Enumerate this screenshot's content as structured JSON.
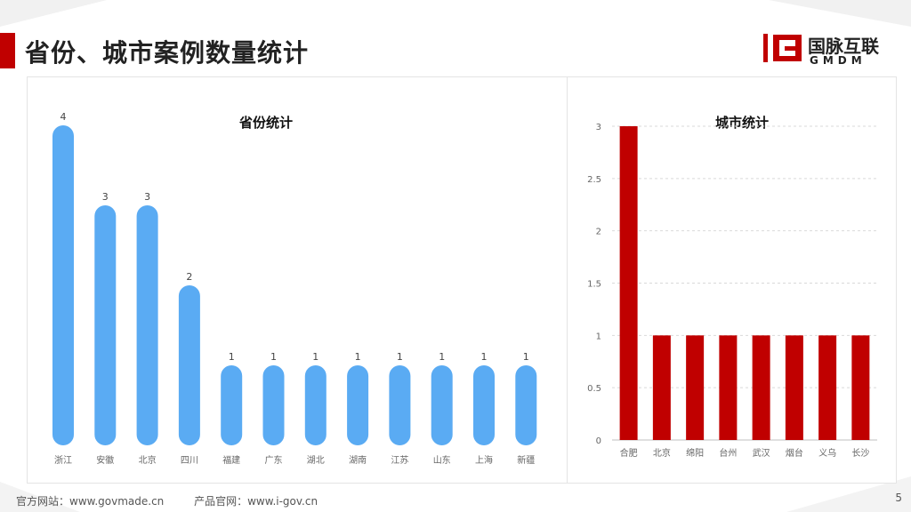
{
  "header": {
    "title": "省份、城市案例数量统计"
  },
  "logo": {
    "cn": "国脉互联",
    "en": "GMDM"
  },
  "footer": {
    "site1": "官方网站：www.govmade.cn",
    "site2": "产品官网：www.i-gov.cn",
    "page": "5"
  },
  "colors": {
    "accent": "#c00000",
    "province_bar": "#5aabf3",
    "city_bar": "#c00000"
  },
  "chart_data": [
    {
      "type": "bar",
      "title": "省份统计",
      "categories": [
        "浙江",
        "安徽",
        "北京",
        "四川",
        "福建",
        "广东",
        "湖北",
        "湖南",
        "江苏",
        "山东",
        "上海",
        "新疆"
      ],
      "values": [
        4,
        3,
        3,
        2,
        1,
        1,
        1,
        1,
        1,
        1,
        1,
        1
      ],
      "ylim": [
        0,
        4
      ],
      "grid": false,
      "data_labels": true,
      "bar_shape": "rounded"
    },
    {
      "type": "bar",
      "title": "城市统计",
      "categories": [
        "合肥",
        "北京",
        "绵阳",
        "台州",
        "武汉",
        "烟台",
        "义乌",
        "长沙"
      ],
      "values": [
        3,
        1,
        1,
        1,
        1,
        1,
        1,
        1
      ],
      "ylim": [
        0,
        3
      ],
      "yticks": [
        "0",
        "0.5",
        "1",
        "1.5",
        "2",
        "2.5",
        "3"
      ],
      "grid": true
    }
  ]
}
